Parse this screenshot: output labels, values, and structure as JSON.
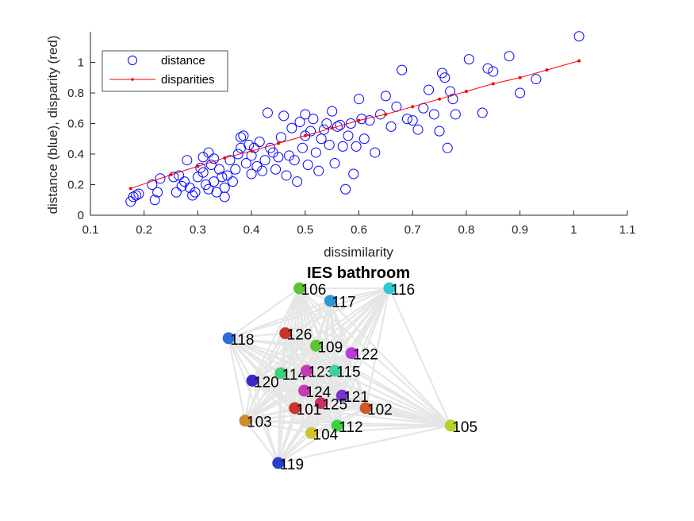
{
  "chart_data": [
    {
      "type": "scatter",
      "xlabel": "dissimilarity",
      "ylabel": "distance (blue), disparity (red)",
      "xlim": [
        0.1,
        1.1
      ],
      "ylim": [
        0,
        1.2
      ],
      "xticks": [
        0.1,
        0.2,
        0.3,
        0.4,
        0.5,
        0.6,
        0.7,
        0.8,
        0.9,
        1,
        1.1
      ],
      "yticks": [
        0,
        0.2,
        0.4,
        0.6,
        0.8,
        1
      ],
      "xtick_labels": [
        "0.1",
        "0.2",
        "0.3",
        "0.4",
        "0.5",
        "0.6",
        "0.7",
        "0.8",
        "0.9",
        "1",
        "1.1"
      ],
      "ytick_labels": [
        "0",
        "0.2",
        "0.4",
        "0.6",
        "0.8",
        "1"
      ],
      "legend_position": "top-left",
      "grid": false,
      "series": [
        {
          "name": "distance",
          "color": "#0000ff",
          "marker": "open-circle",
          "points": [
            [
              0.175,
              0.09
            ],
            [
              0.18,
              0.12
            ],
            [
              0.185,
              0.13
            ],
            [
              0.19,
              0.14
            ],
            [
              0.215,
              0.2
            ],
            [
              0.22,
              0.1
            ],
            [
              0.225,
              0.15
            ],
            [
              0.23,
              0.24
            ],
            [
              0.255,
              0.25
            ],
            [
              0.26,
              0.15
            ],
            [
              0.265,
              0.26
            ],
            [
              0.27,
              0.19
            ],
            [
              0.275,
              0.22
            ],
            [
              0.28,
              0.36
            ],
            [
              0.285,
              0.18
            ],
            [
              0.29,
              0.13
            ],
            [
              0.295,
              0.15
            ],
            [
              0.3,
              0.25
            ],
            [
              0.305,
              0.31
            ],
            [
              0.31,
              0.38
            ],
            [
              0.31,
              0.28
            ],
            [
              0.315,
              0.2
            ],
            [
              0.32,
              0.41
            ],
            [
              0.32,
              0.17
            ],
            [
              0.325,
              0.33
            ],
            [
              0.33,
              0.37
            ],
            [
              0.33,
              0.22
            ],
            [
              0.335,
              0.15
            ],
            [
              0.34,
              0.3
            ],
            [
              0.345,
              0.25
            ],
            [
              0.35,
              0.12
            ],
            [
              0.35,
              0.18
            ],
            [
              0.355,
              0.26
            ],
            [
              0.36,
              0.36
            ],
            [
              0.365,
              0.22
            ],
            [
              0.37,
              0.3
            ],
            [
              0.375,
              0.4
            ],
            [
              0.38,
              0.44
            ],
            [
              0.38,
              0.51
            ],
            [
              0.385,
              0.52
            ],
            [
              0.39,
              0.34
            ],
            [
              0.395,
              0.46
            ],
            [
              0.4,
              0.27
            ],
            [
              0.4,
              0.39
            ],
            [
              0.405,
              0.44
            ],
            [
              0.41,
              0.32
            ],
            [
              0.415,
              0.48
            ],
            [
              0.42,
              0.29
            ],
            [
              0.425,
              0.36
            ],
            [
              0.43,
              0.67
            ],
            [
              0.435,
              0.44
            ],
            [
              0.44,
              0.41
            ],
            [
              0.445,
              0.3
            ],
            [
              0.45,
              0.38
            ],
            [
              0.455,
              0.51
            ],
            [
              0.46,
              0.65
            ],
            [
              0.465,
              0.26
            ],
            [
              0.47,
              0.39
            ],
            [
              0.475,
              0.57
            ],
            [
              0.48,
              0.36
            ],
            [
              0.485,
              0.22
            ],
            [
              0.49,
              0.61
            ],
            [
              0.495,
              0.44
            ],
            [
              0.5,
              0.66
            ],
            [
              0.5,
              0.52
            ],
            [
              0.505,
              0.33
            ],
            [
              0.51,
              0.55
            ],
            [
              0.515,
              0.63
            ],
            [
              0.52,
              0.41
            ],
            [
              0.525,
              0.29
            ],
            [
              0.53,
              0.5
            ],
            [
              0.535,
              0.56
            ],
            [
              0.54,
              0.6
            ],
            [
              0.545,
              0.46
            ],
            [
              0.55,
              0.68
            ],
            [
              0.555,
              0.34
            ],
            [
              0.56,
              0.58
            ],
            [
              0.565,
              0.59
            ],
            [
              0.57,
              0.45
            ],
            [
              0.575,
              0.17
            ],
            [
              0.58,
              0.52
            ],
            [
              0.585,
              0.6
            ],
            [
              0.59,
              0.27
            ],
            [
              0.595,
              0.45
            ],
            [
              0.6,
              0.76
            ],
            [
              0.605,
              0.63
            ],
            [
              0.61,
              0.5
            ],
            [
              0.62,
              0.62
            ],
            [
              0.63,
              0.41
            ],
            [
              0.64,
              0.66
            ],
            [
              0.65,
              0.78
            ],
            [
              0.66,
              0.58
            ],
            [
              0.67,
              0.71
            ],
            [
              0.68,
              0.95
            ],
            [
              0.69,
              0.63
            ],
            [
              0.7,
              0.62
            ],
            [
              0.71,
              0.56
            ],
            [
              0.72,
              0.7
            ],
            [
              0.73,
              0.82
            ],
            [
              0.74,
              0.66
            ],
            [
              0.75,
              0.55
            ],
            [
              0.755,
              0.93
            ],
            [
              0.76,
              0.9
            ],
            [
              0.765,
              0.44
            ],
            [
              0.77,
              0.81
            ],
            [
              0.775,
              0.76
            ],
            [
              0.78,
              0.66
            ],
            [
              0.805,
              1.02
            ],
            [
              0.83,
              0.67
            ],
            [
              0.84,
              0.96
            ],
            [
              0.85,
              0.94
            ],
            [
              0.88,
              1.04
            ],
            [
              0.9,
              0.8
            ],
            [
              0.93,
              0.89
            ],
            [
              1.01,
              1.17
            ]
          ]
        },
        {
          "name": "disparities",
          "color": "#ff0000",
          "marker": "line-dot",
          "points": [
            [
              0.175,
              0.175
            ],
            [
              0.25,
              0.265
            ],
            [
              0.3,
              0.32
            ],
            [
              0.35,
              0.375
            ],
            [
              0.4,
              0.42
            ],
            [
              0.45,
              0.47
            ],
            [
              0.5,
              0.52
            ],
            [
              0.55,
              0.57
            ],
            [
              0.6,
              0.62
            ],
            [
              0.65,
              0.66
            ],
            [
              0.7,
              0.71
            ],
            [
              0.75,
              0.76
            ],
            [
              0.8,
              0.81
            ],
            [
              0.85,
              0.86
            ],
            [
              0.9,
              0.9
            ],
            [
              0.95,
              0.95
            ],
            [
              1.01,
              1.01
            ]
          ]
        }
      ]
    },
    {
      "type": "network",
      "title": "IES bathroom",
      "edge_color": "#e6e6e6",
      "nodes": [
        {
          "label": "106",
          "x": 0.2,
          "y": 0.95,
          "color": "#5cc435"
        },
        {
          "label": "117",
          "x": 0.33,
          "y": 0.9,
          "color": "#2f97d1"
        },
        {
          "label": "116",
          "x": 0.58,
          "y": 0.95,
          "color": "#2fc9cf"
        },
        {
          "label": "118",
          "x": -0.1,
          "y": 0.75,
          "color": "#2a6fd6"
        },
        {
          "label": "126",
          "x": 0.14,
          "y": 0.77,
          "color": "#c9342e"
        },
        {
          "label": "109",
          "x": 0.27,
          "y": 0.72,
          "color": "#5cc435"
        },
        {
          "label": "122",
          "x": 0.42,
          "y": 0.69,
          "color": "#b93ad8"
        },
        {
          "label": "120",
          "x": 0.0,
          "y": 0.58,
          "color": "#3a27cc"
        },
        {
          "label": "114",
          "x": 0.12,
          "y": 0.61,
          "color": "#3ed07a"
        },
        {
          "label": "123",
          "x": 0.23,
          "y": 0.62,
          "color": "#c638b6"
        },
        {
          "label": "115",
          "x": 0.35,
          "y": 0.62,
          "color": "#3ad0a8"
        },
        {
          "label": "124",
          "x": 0.22,
          "y": 0.54,
          "color": "#c638b6"
        },
        {
          "label": "121",
          "x": 0.38,
          "y": 0.52,
          "color": "#7b35cf"
        },
        {
          "label": "125",
          "x": 0.29,
          "y": 0.49,
          "color": "#c9306b"
        },
        {
          "label": "101",
          "x": 0.18,
          "y": 0.47,
          "color": "#c9342e"
        },
        {
          "label": "102",
          "x": 0.48,
          "y": 0.47,
          "color": "#d05a28"
        },
        {
          "label": "103",
          "x": -0.03,
          "y": 0.42,
          "color": "#d0892e"
        },
        {
          "label": "112",
          "x": 0.36,
          "y": 0.4,
          "color": "#3cd043"
        },
        {
          "label": "104",
          "x": 0.25,
          "y": 0.37,
          "color": "#d0c22e"
        },
        {
          "label": "105",
          "x": 0.84,
          "y": 0.4,
          "color": "#b6d02e"
        },
        {
          "label": "119",
          "x": 0.11,
          "y": 0.25,
          "color": "#2a3ccf"
        }
      ]
    }
  ]
}
